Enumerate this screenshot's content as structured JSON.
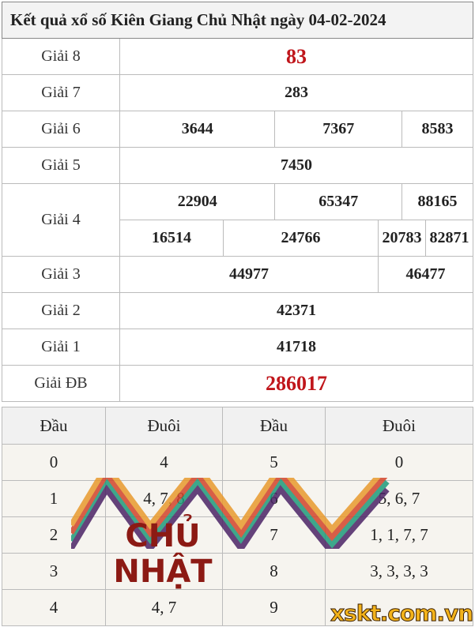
{
  "title": "Kết quả xổ số Kiên Giang Chủ Nhật ngày 04-02-2024",
  "prizes": {
    "g8": {
      "label": "Giải 8",
      "values": [
        "83"
      ]
    },
    "g7": {
      "label": "Giải 7",
      "values": [
        "283"
      ]
    },
    "g6": {
      "label": "Giải 6",
      "values": [
        "3644",
        "7367",
        "8583"
      ]
    },
    "g5": {
      "label": "Giải 5",
      "values": [
        "7450"
      ]
    },
    "g4": {
      "label": "Giải 4",
      "values": [
        "22904",
        "65347",
        "88165",
        "16514",
        "24766",
        "20783",
        "82871"
      ]
    },
    "g3": {
      "label": "Giải 3",
      "values": [
        "44977",
        "46477"
      ]
    },
    "g2": {
      "label": "Giải 2",
      "values": [
        "42371"
      ]
    },
    "g1": {
      "label": "Giải 1",
      "values": [
        "41718"
      ]
    },
    "db": {
      "label": "Giải ĐB",
      "values": [
        "286017"
      ]
    }
  },
  "loto": {
    "headers": [
      "Đầu",
      "Đuôi",
      "Đầu",
      "Đuôi"
    ],
    "rows": [
      [
        "0",
        "4",
        "5",
        "0"
      ],
      [
        "1",
        "4, 7, 8",
        "6",
        "5, 6, 7"
      ],
      [
        "2",
        "",
        "7",
        "1, 1, 7, 7"
      ],
      [
        "3",
        "",
        "8",
        "3, 3, 3, 3"
      ],
      [
        "4",
        "4, 7",
        "9",
        ""
      ]
    ]
  },
  "overlay": {
    "banner_text": "CHỦ NHẬT",
    "logo_text": "xskt.com.vn"
  },
  "colors": {
    "special": "#c0161b",
    "banner": "#8c1a14",
    "logo": "#f3b31b"
  }
}
